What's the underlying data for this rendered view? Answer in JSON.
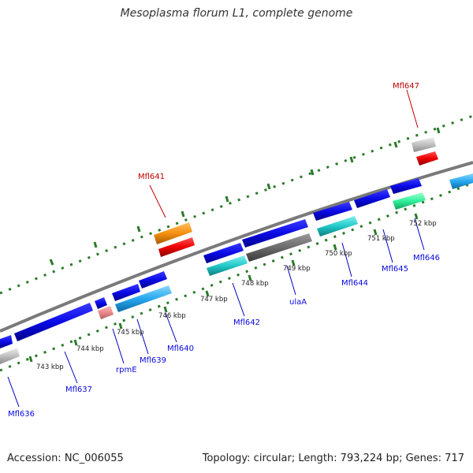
{
  "title": "Mesoplasma florum L1, complete genome",
  "footer": {
    "accession": "Accession: NC_006055",
    "topology": "Topology: circular; Length: 793,224 bp; Genes: 717"
  },
  "colors": {
    "gene": "#0808e0",
    "highlight_label": "#c00000",
    "tick": "#2a7a2a",
    "backbone": "#7a7a7a"
  },
  "ruler_labels": [
    "743 kbp",
    "744 kbp",
    "745 kbp",
    "746 kbp",
    "747 kbp",
    "748 kbp",
    "749 kbp",
    "750 kbp",
    "751 kbp",
    "752 kbp"
  ],
  "gene_labels": [
    {
      "text": "Mfl636",
      "highlight": false
    },
    {
      "text": "Mfl637",
      "highlight": false
    },
    {
      "text": "rpmE",
      "highlight": false
    },
    {
      "text": "Mfl639",
      "highlight": false
    },
    {
      "text": "Mfl640",
      "highlight": false
    },
    {
      "text": "Mfl641",
      "highlight": true
    },
    {
      "text": "Mfl642",
      "highlight": false
    },
    {
      "text": "ulaA",
      "highlight": false
    },
    {
      "text": "Mfl644",
      "highlight": false
    },
    {
      "text": "Mfl645",
      "highlight": false
    },
    {
      "text": "Mfl646",
      "highlight": false
    },
    {
      "text": "Mfl647",
      "highlight": true
    }
  ]
}
